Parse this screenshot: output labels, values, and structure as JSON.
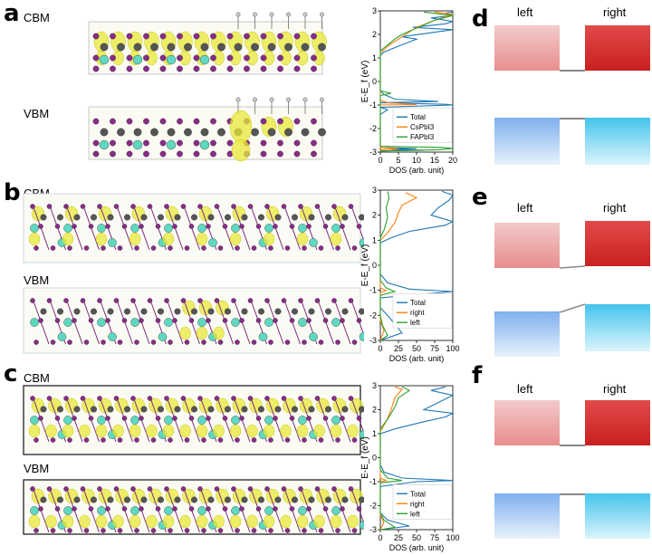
{
  "panels": {
    "a": {
      "letter": "a",
      "cbm": "CBM",
      "vbm": "VBM"
    },
    "b": {
      "letter": "b",
      "cbm": "CBM",
      "vbm": "VBM"
    },
    "c": {
      "letter": "c",
      "cbm": "CBM",
      "vbm": "VBM"
    },
    "d": {
      "letter": "d",
      "left": "left",
      "right": "right",
      "diagram": "band-alignment"
    },
    "e": {
      "letter": "e",
      "left": "left",
      "right": "right",
      "diagram": "band-alignment"
    },
    "f": {
      "letter": "f",
      "left": "left",
      "right": "right",
      "diagram": "band-alignment"
    }
  },
  "colors": {
    "total": "#1f77b4",
    "series2": "#ff7f0e",
    "series3": "#2ca02c",
    "cbm_left": "#f0b4b4",
    "cbm_right": "#d63c3c",
    "vbm_left": "#8fb8ee",
    "vbm_right": "#58c8ec",
    "iodine": "#8a2a8a",
    "cs": "#5fd8c0",
    "pb": "#555555",
    "iso": "#e8e838"
  },
  "chart_data": [
    {
      "id": "a",
      "type": "line",
      "ylabel": "E-E_f (eV)",
      "xlabel": "DOS (arb. unit)",
      "xlim": [
        0,
        20
      ],
      "ylim": [
        -3,
        3
      ],
      "xticks": [
        "0",
        "5",
        "10",
        "15",
        "20"
      ],
      "yticks": [
        "-3",
        "-2",
        "-1",
        "0",
        "1",
        "2",
        "3"
      ],
      "legend": [
        "Total",
        "CsPbI3",
        "FAPbI3"
      ],
      "series": [
        {
          "name": "Total",
          "color": "#1f77b4",
          "points": [
            [
              0,
              -3
            ],
            [
              0,
              -2.95
            ],
            [
              12,
              -2.92
            ],
            [
              3,
              -2.88
            ],
            [
              10,
              -2.85
            ],
            [
              0,
              -2.8
            ],
            [
              0,
              -1.4
            ],
            [
              2,
              -1.2
            ],
            [
              0,
              -1.1
            ],
            [
              20,
              -1.0
            ],
            [
              18,
              -0.97
            ],
            [
              0,
              -0.9
            ],
            [
              16,
              -0.85
            ],
            [
              4,
              -0.75
            ],
            [
              1,
              -0.55
            ],
            [
              0,
              -0.4
            ],
            [
              0,
              1.1
            ],
            [
              1,
              1.25
            ],
            [
              5,
              1.5
            ],
            [
              10,
              1.8
            ],
            [
              6,
              1.9
            ],
            [
              20,
              2.2
            ],
            [
              9,
              2.3
            ],
            [
              18,
              2.45
            ],
            [
              20,
              2.55
            ],
            [
              14,
              2.7
            ],
            [
              20,
              2.8
            ],
            [
              18,
              2.9
            ],
            [
              20,
              2.95
            ]
          ]
        },
        {
          "name": "CsPbI3",
          "color": "#ff7f0e",
          "points": [
            [
              0,
              -3
            ],
            [
              0,
              -2.9
            ],
            [
              5,
              -2.85
            ],
            [
              0,
              -2.8
            ],
            [
              0,
              -1.0
            ],
            [
              10,
              -0.98
            ],
            [
              2,
              -0.9
            ],
            [
              0,
              -0.8
            ],
            [
              0,
              1.2
            ],
            [
              2,
              1.5
            ],
            [
              6,
              1.9
            ],
            [
              10,
              2.3
            ],
            [
              15,
              2.6
            ],
            [
              20,
              2.85
            ],
            [
              15,
              2.95
            ]
          ]
        },
        {
          "name": "FAPbI3",
          "color": "#2ca02c",
          "points": [
            [
              0,
              -3
            ],
            [
              0,
              -2.95
            ],
            [
              16,
              -2.9
            ],
            [
              20,
              -2.85
            ],
            [
              17,
              -2.8
            ],
            [
              0,
              -2.75
            ],
            [
              0,
              -0.6
            ],
            [
              3,
              -0.5
            ],
            [
              0,
              -0.4
            ],
            [
              0,
              1.3
            ],
            [
              4,
              1.8
            ],
            [
              6,
              2.0
            ],
            [
              12,
              2.4
            ],
            [
              15,
              2.6
            ],
            [
              20,
              2.8
            ],
            [
              12,
              2.95
            ]
          ]
        }
      ]
    },
    {
      "id": "b",
      "type": "line",
      "ylabel": "E-E_f (eV)",
      "xlabel": "DOS (arb. unit)",
      "xlim": [
        0,
        100
      ],
      "ylim": [
        -3,
        3
      ],
      "xticks": [
        "0",
        "25",
        "50",
        "75",
        "100"
      ],
      "yticks": [
        "-3",
        "-2",
        "-1",
        "0",
        "1",
        "2",
        "3"
      ],
      "legend": [
        "Total",
        "right",
        "left"
      ],
      "series": [
        {
          "name": "Total",
          "color": "#1f77b4",
          "points": [
            [
              0,
              -3
            ],
            [
              30,
              -2.7
            ],
            [
              10,
              -2.0
            ],
            [
              0,
              -1.7
            ],
            [
              0,
              -1.3
            ],
            [
              60,
              -1.15
            ],
            [
              100,
              -1.05
            ],
            [
              40,
              -0.95
            ],
            [
              10,
              -0.7
            ],
            [
              0,
              -0.35
            ],
            [
              0,
              0.9
            ],
            [
              15,
              1.1
            ],
            [
              40,
              1.35
            ],
            [
              90,
              1.6
            ],
            [
              100,
              1.75
            ],
            [
              70,
              2.0
            ],
            [
              80,
              2.3
            ],
            [
              95,
              2.6
            ],
            [
              100,
              2.8
            ],
            [
              85,
              2.95
            ]
          ]
        },
        {
          "name": "right",
          "color": "#ff7f0e",
          "points": [
            [
              0,
              -3
            ],
            [
              5,
              -2.6
            ],
            [
              0,
              -2.2
            ],
            [
              0,
              -1.1
            ],
            [
              8,
              -1.0
            ],
            [
              0,
              -0.9
            ],
            [
              0,
              1.0
            ],
            [
              10,
              1.3
            ],
            [
              20,
              1.7
            ],
            [
              25,
              2.1
            ],
            [
              30,
              2.4
            ],
            [
              50,
              2.7
            ],
            [
              35,
              2.9
            ]
          ]
        },
        {
          "name": "left",
          "color": "#2ca02c",
          "points": [
            [
              0,
              -3
            ],
            [
              10,
              -2.8
            ],
            [
              3,
              -2.4
            ],
            [
              0,
              -2.0
            ],
            [
              0,
              -1.2
            ],
            [
              20,
              -1.05
            ],
            [
              8,
              -0.9
            ],
            [
              0,
              -0.6
            ],
            [
              0,
              1.1
            ],
            [
              5,
              1.4
            ],
            [
              10,
              1.9
            ],
            [
              8,
              2.3
            ],
            [
              12,
              2.7
            ],
            [
              10,
              2.95
            ]
          ]
        }
      ]
    },
    {
      "id": "c",
      "type": "line",
      "ylabel": "E-E_f (eV)",
      "xlabel": "DOS (arb. unit)",
      "xlim": [
        0,
        100
      ],
      "ylim": [
        -3,
        3
      ],
      "xticks": [
        "0",
        "25",
        "50",
        "75",
        "100"
      ],
      "yticks": [
        "-3",
        "-2",
        "-1",
        "0",
        "1",
        "2",
        "3"
      ],
      "legend": [
        "Total",
        "right",
        "left"
      ],
      "series": [
        {
          "name": "Total",
          "color": "#1f77b4",
          "points": [
            [
              0,
              -3
            ],
            [
              40,
              -2.85
            ],
            [
              10,
              -2.6
            ],
            [
              0,
              -2.3
            ],
            [
              0,
              -1.2
            ],
            [
              50,
              -1.0
            ],
            [
              100,
              -0.95
            ],
            [
              30,
              -0.85
            ],
            [
              5,
              -0.6
            ],
            [
              0,
              -0.3
            ],
            [
              0,
              1.0
            ],
            [
              20,
              1.2
            ],
            [
              60,
              1.5
            ],
            [
              90,
              1.7
            ],
            [
              100,
              1.85
            ],
            [
              60,
              2.0
            ],
            [
              80,
              2.3
            ],
            [
              100,
              2.6
            ],
            [
              70,
              2.8
            ],
            [
              90,
              2.95
            ]
          ]
        },
        {
          "name": "right",
          "color": "#ff7f0e",
          "points": [
            [
              0,
              -3
            ],
            [
              5,
              -2.7
            ],
            [
              0,
              -2.4
            ],
            [
              0,
              -1.0
            ],
            [
              8,
              -0.95
            ],
            [
              0,
              -0.85
            ],
            [
              0,
              1.1
            ],
            [
              8,
              1.5
            ],
            [
              15,
              2.0
            ],
            [
              20,
              2.5
            ],
            [
              30,
              2.85
            ],
            [
              20,
              2.95
            ]
          ]
        },
        {
          "name": "left",
          "color": "#2ca02c",
          "points": [
            [
              0,
              -3
            ],
            [
              20,
              -2.9
            ],
            [
              5,
              -2.6
            ],
            [
              0,
              -2.3
            ],
            [
              0,
              -1.05
            ],
            [
              30,
              -0.95
            ],
            [
              10,
              -0.85
            ],
            [
              0,
              -0.5
            ],
            [
              0,
              1.2
            ],
            [
              10,
              1.6
            ],
            [
              20,
              2.1
            ],
            [
              25,
              2.5
            ],
            [
              40,
              2.8
            ],
            [
              30,
              2.95
            ]
          ]
        }
      ]
    }
  ]
}
